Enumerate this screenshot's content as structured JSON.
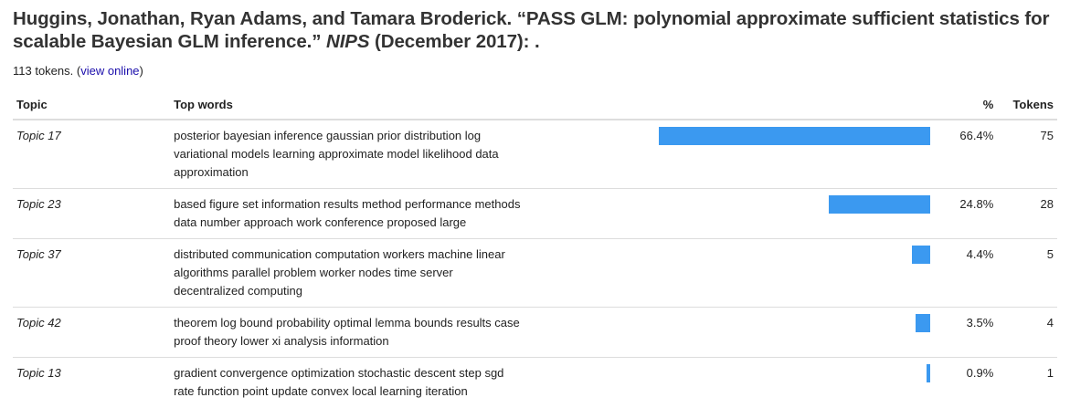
{
  "citation": {
    "authors": "Huggins, Jonathan, Ryan Adams, and Tamara Broderick.",
    "title": "“PASS GLM: polynomial approximate sufficient statistics for scalable Bayesian GLM inference.”",
    "venue": "NIPS",
    "date": "(December 2017): ."
  },
  "meta": {
    "tokens_text": "113 tokens.",
    "link_label": "view online"
  },
  "table": {
    "headers": {
      "topic": "Topic",
      "words": "Top words",
      "pct": "%",
      "tokens": "Tokens"
    },
    "rows": [
      {
        "topic": "Topic 17",
        "words": "posterior bayesian inference gaussian prior distribution log variational models learning approximate model likelihood data approximation",
        "pct_label": "66.4%",
        "pct": 66.4,
        "tokens": "75"
      },
      {
        "topic": "Topic 23",
        "words": "based figure set information results method performance methods data number approach work conference proposed large",
        "pct_label": "24.8%",
        "pct": 24.8,
        "tokens": "28"
      },
      {
        "topic": "Topic 37",
        "words": "distributed communication computation workers machine linear algorithms parallel problem worker nodes time server decentralized computing",
        "pct_label": "4.4%",
        "pct": 4.4,
        "tokens": "5"
      },
      {
        "topic": "Topic 42",
        "words": "theorem log bound probability optimal lemma bounds results case proof theory lower xi analysis information",
        "pct_label": "3.5%",
        "pct": 3.5,
        "tokens": "4"
      },
      {
        "topic": "Topic 13",
        "words": "gradient convergence optimization stochastic descent step sgd rate function point update convex local learning iteration",
        "pct_label": "0.9%",
        "pct": 0.9,
        "tokens": "1"
      }
    ]
  },
  "colors": {
    "bar": "#3b99f0",
    "link": "#1a0dab"
  }
}
